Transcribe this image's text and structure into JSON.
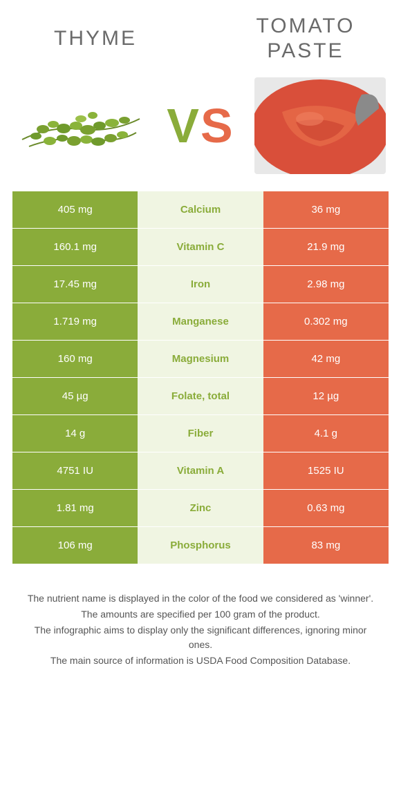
{
  "colors": {
    "left_bg": "#8aac3a",
    "mid_bg": "#f0f5e2",
    "right_bg": "#e66a49",
    "vs_left": "#8aac3a",
    "vs_right": "#e66a49",
    "title_color": "#6a6a6a",
    "footer_color": "#555555",
    "background": "#ffffff"
  },
  "header": {
    "left_title": "Thyme",
    "right_title": "Tomato paste",
    "vs_v": "V",
    "vs_s": "S"
  },
  "rows": [
    {
      "left": "405 mg",
      "label": "Calcium",
      "right": "36 mg",
      "winner": "left"
    },
    {
      "left": "160.1 mg",
      "label": "Vitamin C",
      "right": "21.9 mg",
      "winner": "left"
    },
    {
      "left": "17.45 mg",
      "label": "Iron",
      "right": "2.98 mg",
      "winner": "left"
    },
    {
      "left": "1.719 mg",
      "label": "Manganese",
      "right": "0.302 mg",
      "winner": "left"
    },
    {
      "left": "160 mg",
      "label": "Magnesium",
      "right": "42 mg",
      "winner": "left"
    },
    {
      "left": "45 µg",
      "label": "Folate, total",
      "right": "12 µg",
      "winner": "left"
    },
    {
      "left": "14 g",
      "label": "Fiber",
      "right": "4.1 g",
      "winner": "left"
    },
    {
      "left": "4751 IU",
      "label": "Vitamin A",
      "right": "1525 IU",
      "winner": "left"
    },
    {
      "left": "1.81 mg",
      "label": "Zinc",
      "right": "0.63 mg",
      "winner": "left"
    },
    {
      "left": "106 mg",
      "label": "Phosphorus",
      "right": "83 mg",
      "winner": "left"
    }
  ],
  "footer": {
    "line1": "The nutrient name is displayed in the color of the food we considered as 'winner'.",
    "line2": "The amounts are specified per 100 gram of the product.",
    "line3": "The infographic aims to display only the significant differences, ignoring minor ones.",
    "line4": "The main source of information is USDA Food Composition Database."
  }
}
